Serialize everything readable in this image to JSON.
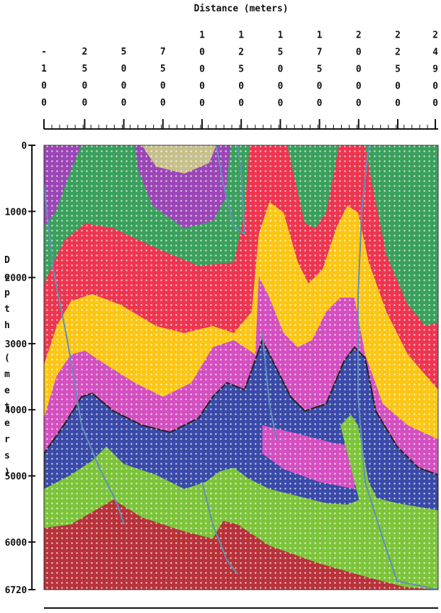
{
  "header": {
    "title": "Distance (meters)"
  },
  "x_axis": {
    "ticks": [
      -100,
      2500,
      5000,
      7500,
      10000,
      12500,
      15000,
      17500,
      20000,
      22500,
      24900
    ],
    "range": [
      -100,
      24900
    ]
  },
  "y_axis": {
    "label": "Depth (meters)",
    "ticks": [
      0,
      1000,
      2000,
      3000,
      4000,
      5000,
      6000,
      6720
    ],
    "range": [
      0,
      6720
    ]
  }
}
